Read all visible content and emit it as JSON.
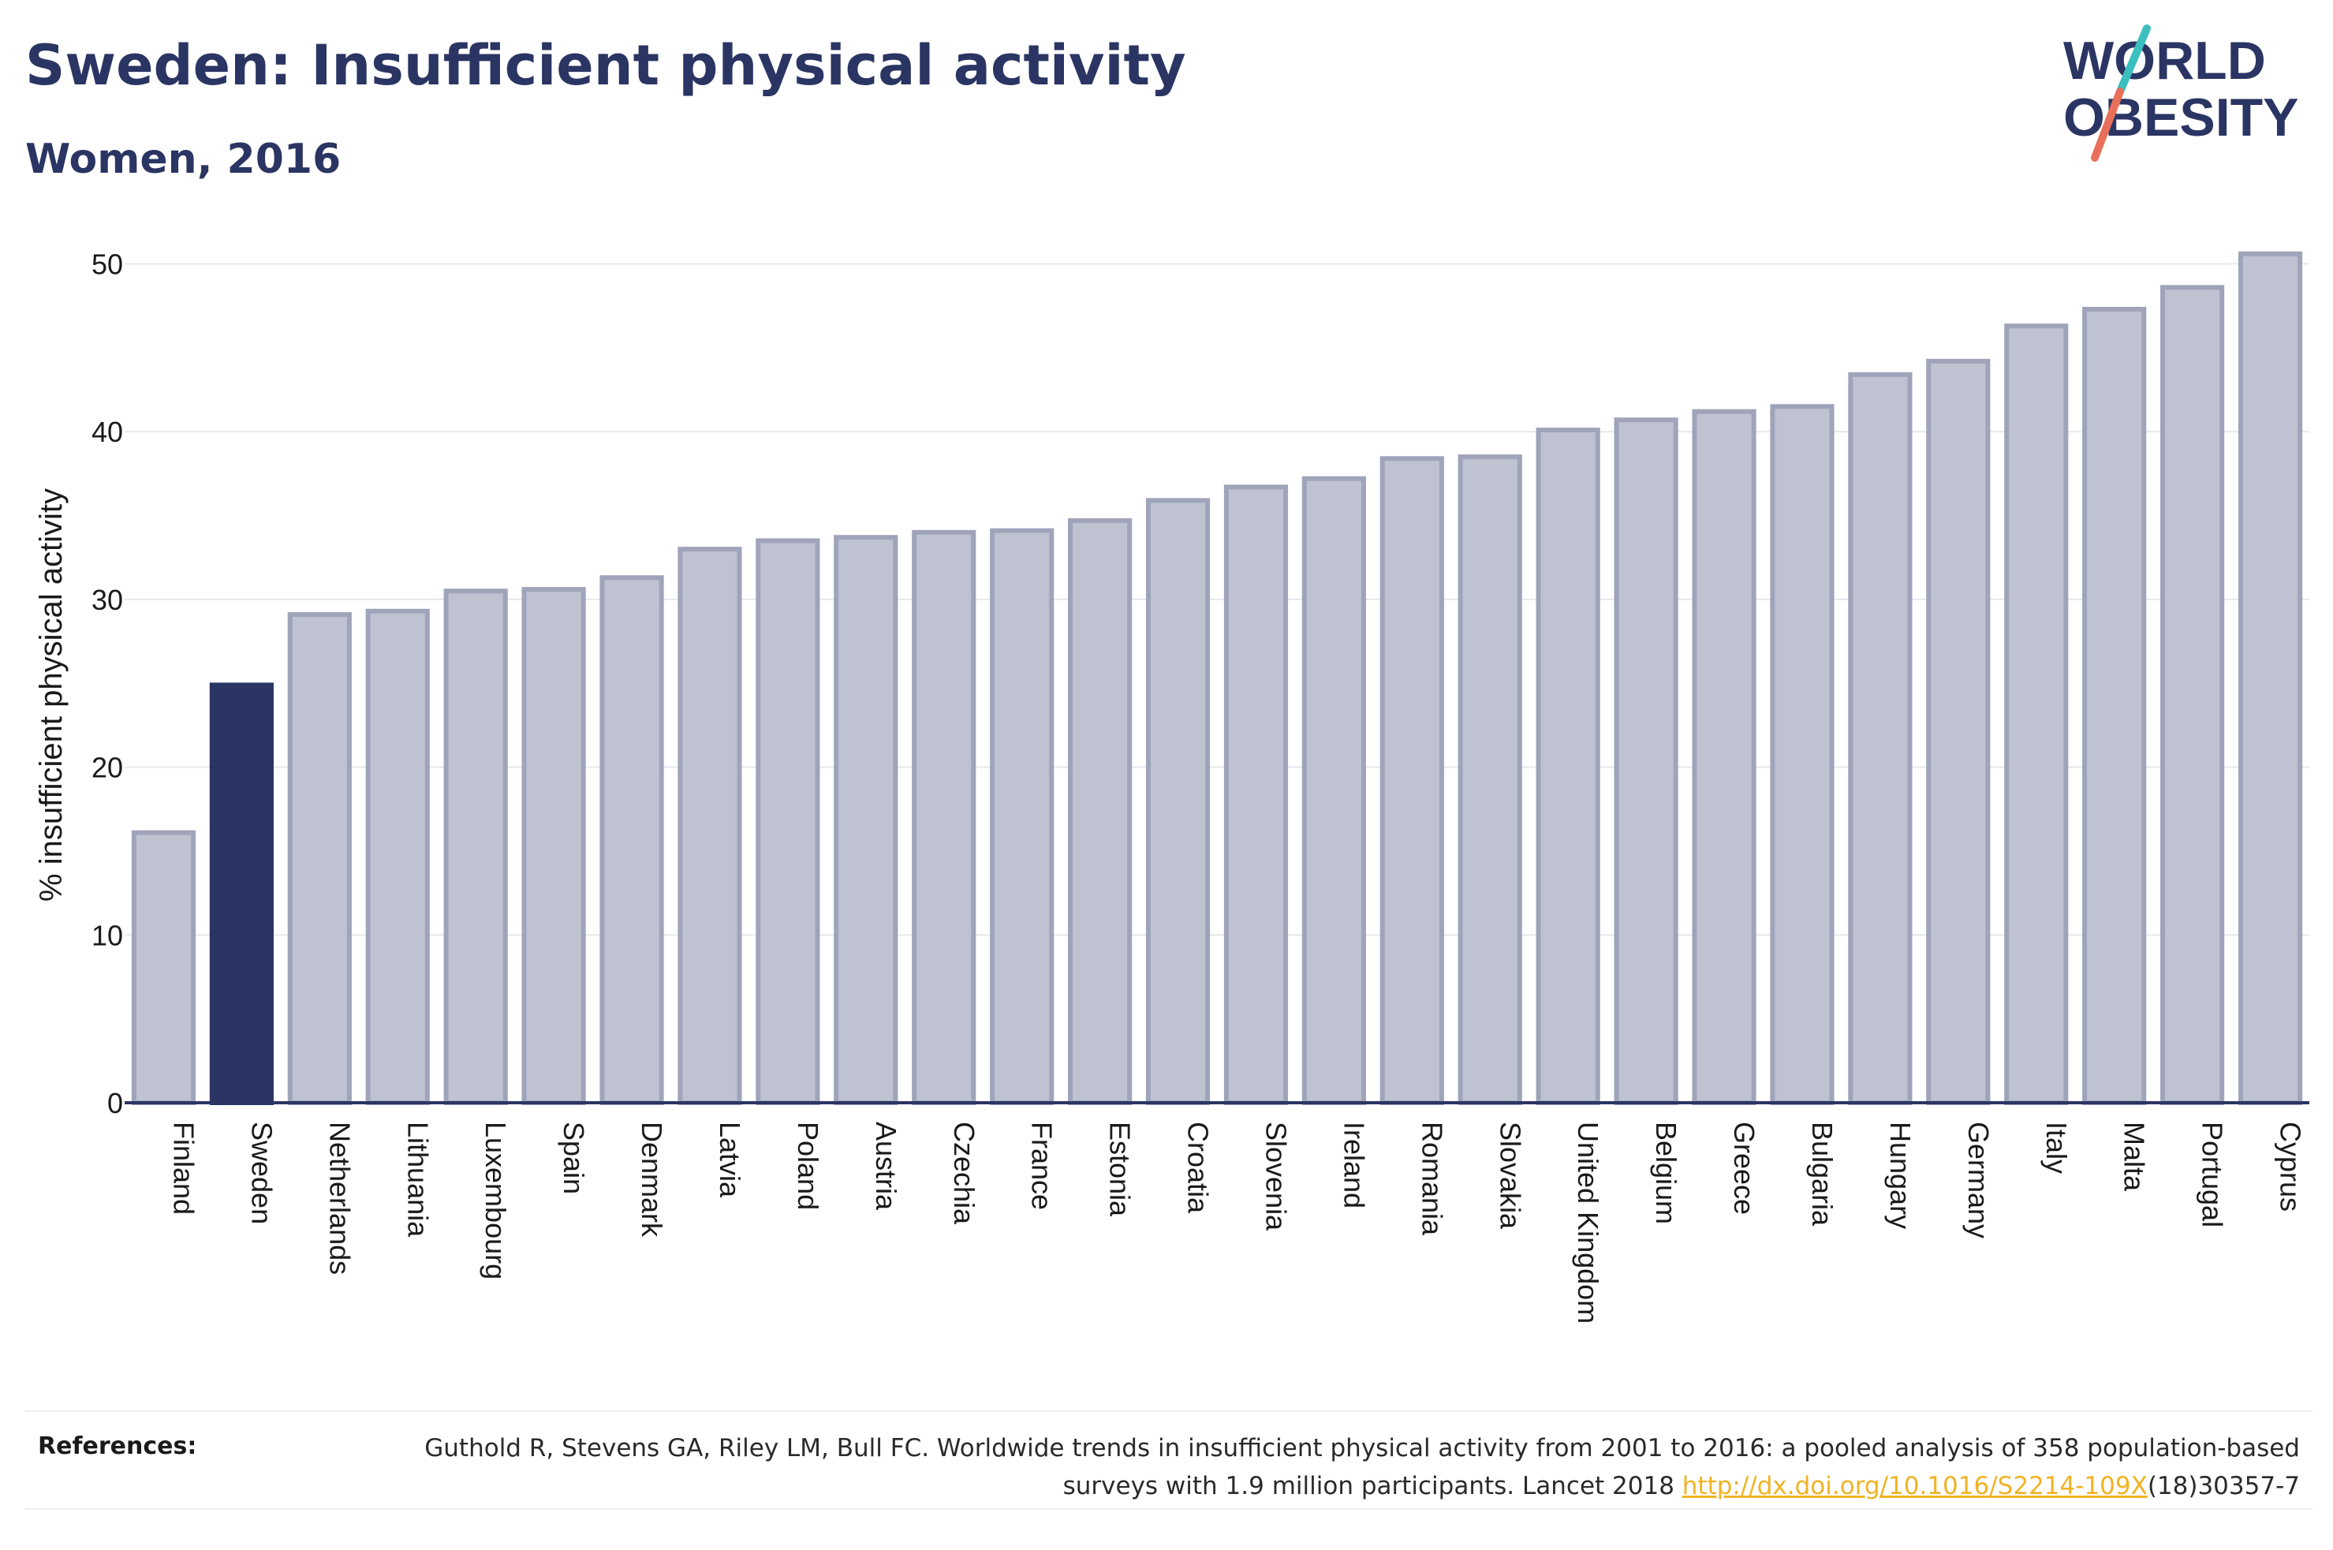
{
  "header": {
    "title": "Sweden: Insufficient physical activity",
    "subtitle": "Women, 2016"
  },
  "logo": {
    "line1": "WORLD",
    "line2": "OBESITY",
    "colors": {
      "text": "#2b3563",
      "slash_top": "#3cbfbf",
      "slash_bottom": "#e8705a"
    }
  },
  "chart_data": {
    "type": "bar",
    "ylabel": "% insufficient physical activity",
    "xlabel": "",
    "ylim": [
      0,
      52
    ],
    "yticks": [
      0,
      10,
      20,
      30,
      40,
      50
    ],
    "grid": true,
    "highlight": "Sweden",
    "colors": {
      "bar": "#bfc2d0",
      "bar_border": "#9fa4ba",
      "highlight": "#2b3563",
      "grid": "#e6e8ee",
      "axis": "#2b3563"
    },
    "categories": [
      "Finland",
      "Sweden",
      "Netherlands",
      "Lithuania",
      "Luxembourg",
      "Spain",
      "Denmark",
      "Latvia",
      "Poland",
      "Austria",
      "Czechia",
      "France",
      "Estonia",
      "Croatia",
      "Slovenia",
      "Ireland",
      "Romania",
      "Slovakia",
      "United Kingdom",
      "Belgium",
      "Greece",
      "Bulgaria",
      "Hungary",
      "Germany",
      "Italy",
      "Malta",
      "Portugal",
      "Cyprus"
    ],
    "values": [
      16.1,
      24.9,
      29.1,
      29.3,
      30.5,
      30.6,
      31.3,
      33.0,
      33.5,
      33.7,
      34.0,
      34.1,
      34.7,
      35.9,
      36.7,
      37.2,
      38.4,
      38.5,
      40.1,
      40.7,
      41.2,
      41.5,
      43.4,
      44.2,
      46.3,
      47.3,
      48.6,
      50.6
    ]
  },
  "references": {
    "label": "References:",
    "text_before": "Guthold R, Stevens GA, Riley LM, Bull FC. Worldwide trends in insufficient physical activity from 2001 to 2016: a pooled analysis of 358 population-based surveys with 1.9 million participants. Lancet 2018 ",
    "link": "http://dx.doi.org/10.1016/S2214-109X",
    "text_after": "(18)30357-7"
  }
}
